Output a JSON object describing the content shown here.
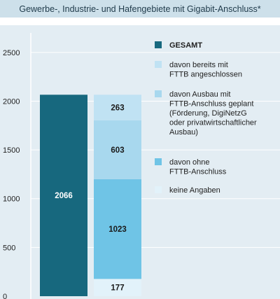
{
  "title": "Gewerbe-, Industrie- und Hafengebiete mit Gigabit-Anschluss*",
  "chart_data": {
    "type": "bar",
    "title": "Gewerbe-, Industrie- und Hafengebiete mit Gigabit-Anschluss*",
    "xlabel": "",
    "ylabel": "",
    "ylim": [
      0,
      2700
    ],
    "yticks": [
      0,
      500,
      1000,
      1500,
      2000,
      2500
    ],
    "grid": true,
    "legend_position": "right",
    "bars": [
      {
        "name": "GESAMT",
        "stacked": false,
        "segments": [
          {
            "legend_index": 0,
            "value": 2066,
            "label": "2066"
          }
        ]
      },
      {
        "name": "",
        "stacked": true,
        "segments": [
          {
            "legend_index": 4,
            "value": 177,
            "label": "177"
          },
          {
            "legend_index": 3,
            "value": 1023,
            "label": "1023"
          },
          {
            "legend_index": 2,
            "value": 603,
            "label": "603"
          },
          {
            "legend_index": 1,
            "value": 263,
            "label": "263"
          }
        ]
      }
    ],
    "legend": [
      {
        "lines": [
          "GESAMT"
        ],
        "color": "#17687e",
        "bold": true
      },
      {
        "lines": [
          "davon bereits mit",
          "FTTB angeschlossen"
        ],
        "color": "#c0e2f3",
        "bold": false
      },
      {
        "lines": [
          "davon Ausbau mit",
          "FTTB-Anschluss geplant",
          "(Förderung, DigiNetzG",
          "oder privatwirtschaftlicher",
          "Ausbau)"
        ],
        "color": "#a8d8ee",
        "bold": false
      },
      {
        "lines": [
          "davon ohne",
          "FTTB-Anschluss"
        ],
        "color": "#6fc4e6",
        "bold": false
      },
      {
        "lines": [
          "keine Angaben"
        ],
        "color": "#e2f2fa",
        "bold": false
      }
    ]
  }
}
